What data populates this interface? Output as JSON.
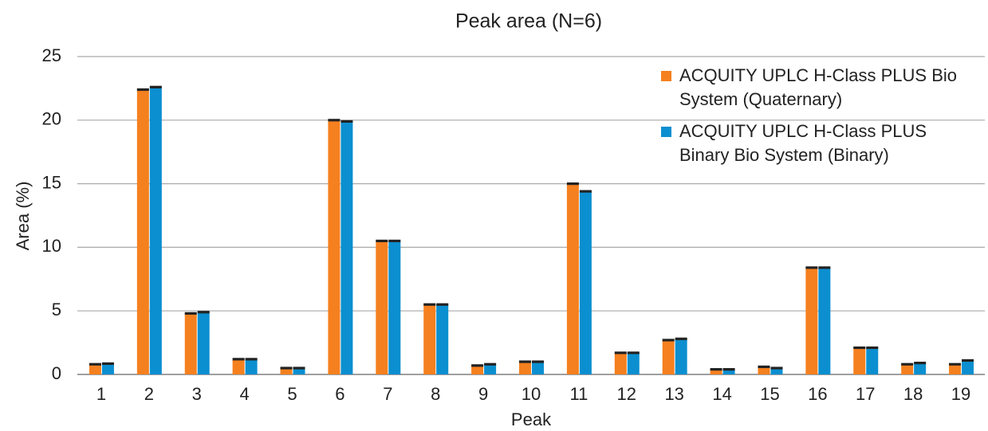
{
  "chart_data": {
    "type": "bar",
    "title": "Peak area (N=6)",
    "x_label": "Peak",
    "y_label": "Area (%)",
    "categories": [
      "1",
      "2",
      "3",
      "4",
      "5",
      "6",
      "7",
      "8",
      "9",
      "10",
      "11",
      "12",
      "13",
      "14",
      "15",
      "16",
      "17",
      "18",
      "19"
    ],
    "series": [
      {
        "name": "ACQUITY UPLC H-Class PLUS Bio System (Quaternary)",
        "color": "#f5801f",
        "values": [
          0.8,
          22.4,
          4.8,
          1.2,
          0.5,
          20.0,
          10.5,
          5.5,
          0.7,
          1.0,
          15.0,
          1.7,
          2.7,
          0.4,
          0.6,
          8.4,
          2.1,
          0.8,
          0.8
        ],
        "errors": [
          0.1,
          0.1,
          0.1,
          0.1,
          0.1,
          0.1,
          0.1,
          0.1,
          0.1,
          0.1,
          0.1,
          0.1,
          0.1,
          0.1,
          0.1,
          0.1,
          0.1,
          0.1,
          0.1
        ]
      },
      {
        "name": "ACQUITY UPLC H-Class PLUS Binary Bio System (Binary)",
        "color": "#0b8fd0",
        "values": [
          0.85,
          22.6,
          4.9,
          1.2,
          0.5,
          19.9,
          10.5,
          5.5,
          0.8,
          1.0,
          14.4,
          1.7,
          2.8,
          0.4,
          0.5,
          8.4,
          2.1,
          0.9,
          1.1
        ],
        "errors": [
          0.1,
          0.1,
          0.1,
          0.1,
          0.1,
          0.1,
          0.1,
          0.1,
          0.1,
          0.1,
          0.1,
          0.1,
          0.1,
          0.1,
          0.1,
          0.1,
          0.1,
          0.1,
          0.1
        ]
      }
    ],
    "ylim": [
      0,
      25
    ],
    "yticks": [
      0,
      5,
      10,
      15,
      20,
      25
    ],
    "grid": true,
    "legend": "upper right"
  }
}
